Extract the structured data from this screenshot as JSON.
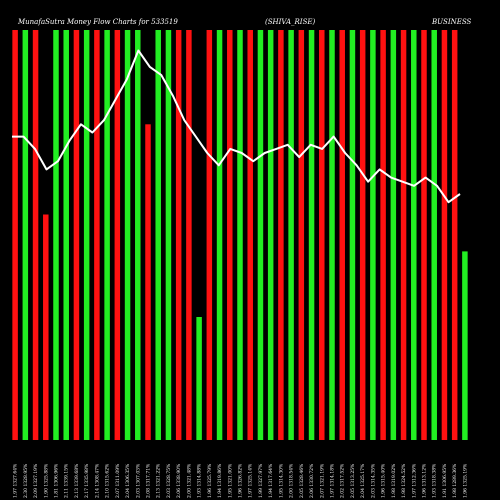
{
  "chart_data": {
    "type": "bar",
    "title": "MunafaSutra Money Flow Charts for 533519",
    "subtitle_middle": "(SHIVA_RISE)",
    "subtitle_right": "BUSINESS",
    "colors": {
      "background": "#000000",
      "up": "#22ee22",
      "down": "#ff1111",
      "line": "#ffffff"
    },
    "y_range": [
      0,
      100
    ],
    "x_labels": [
      "1.97 1327.64%",
      "2.30 1328.95%",
      "2.09 1327.19%",
      "1.90 1325.88%",
      "1.81 1306.96%",
      "2.11 1339.15%",
      "2.13 1339.68%",
      "2.17 1335.98%",
      "2.14 1308.47%",
      "2.10 1315.62%",
      "2.07 1311.09%",
      "2.04 1306.35%",
      "2.03 1307.03%",
      "2.08 1317.71%",
      "2.13 1321.22%",
      "2.03 1328.75%",
      "2.06 1338.90%",
      "2.00 1321.48%",
      "1.93 1314.88%",
      "1.96 1325.79%",
      "1.94 1319.86%",
      "1.95 1321.00%",
      "1.96 1326.82%",
      "1.97 1325.14%",
      "1.99 1327.97%",
      "1.94 1317.64%",
      "1.95 1314.30%",
      "2.00 1318.54%",
      "2.05 1328.46%",
      "2.06 1330.72%",
      "2.07 1321.19%",
      "1.97 1314.18%",
      "2.02 1317.52%",
      "2.05 1313.25%",
      "2.04 1325.17%",
      "2.03 1314.35%",
      "1.96 1315.40%",
      "1.98 1319.02%",
      "1.98 1324.52%",
      "1.97 1312.36%",
      "1.96 1313.12%",
      "1.93 1318.38%",
      "1.91 1306.95%",
      "1.98 1289.36%",
      "1.96 1325.19%"
    ],
    "bars": [
      {
        "dir": "down",
        "value": 100
      },
      {
        "dir": "up",
        "value": 100
      },
      {
        "dir": "down",
        "value": 100
      },
      {
        "dir": "down",
        "value": 55
      },
      {
        "dir": "up",
        "value": 100
      },
      {
        "dir": "up",
        "value": 100
      },
      {
        "dir": "down",
        "value": 100
      },
      {
        "dir": "up",
        "value": 100
      },
      {
        "dir": "down",
        "value": 100
      },
      {
        "dir": "up",
        "value": 100
      },
      {
        "dir": "down",
        "value": 100
      },
      {
        "dir": "up",
        "value": 100
      },
      {
        "dir": "up",
        "value": 100
      },
      {
        "dir": "down",
        "value": 77
      },
      {
        "dir": "up",
        "value": 100
      },
      {
        "dir": "up",
        "value": 100
      },
      {
        "dir": "down",
        "value": 100
      },
      {
        "dir": "down",
        "value": 100
      },
      {
        "dir": "up",
        "value": 30
      },
      {
        "dir": "down",
        "value": 100
      },
      {
        "dir": "up",
        "value": 100
      },
      {
        "dir": "down",
        "value": 100
      },
      {
        "dir": "up",
        "value": 100
      },
      {
        "dir": "down",
        "value": 100
      },
      {
        "dir": "up",
        "value": 100
      },
      {
        "dir": "up",
        "value": 100
      },
      {
        "dir": "down",
        "value": 100
      },
      {
        "dir": "up",
        "value": 100
      },
      {
        "dir": "down",
        "value": 100
      },
      {
        "dir": "up",
        "value": 100
      },
      {
        "dir": "down",
        "value": 100
      },
      {
        "dir": "up",
        "value": 100
      },
      {
        "dir": "down",
        "value": 100
      },
      {
        "dir": "up",
        "value": 100
      },
      {
        "dir": "down",
        "value": 100
      },
      {
        "dir": "up",
        "value": 100
      },
      {
        "dir": "down",
        "value": 100
      },
      {
        "dir": "up",
        "value": 100
      },
      {
        "dir": "down",
        "value": 100
      },
      {
        "dir": "up",
        "value": 100
      },
      {
        "dir": "down",
        "value": 100
      },
      {
        "dir": "up",
        "value": 100
      },
      {
        "dir": "down",
        "value": 100
      },
      {
        "dir": "down",
        "value": 100
      },
      {
        "dir": "up",
        "value": 46
      }
    ],
    "line": [
      74,
      74,
      71,
      66,
      68,
      73,
      77,
      75,
      78,
      83,
      88,
      95,
      91,
      89,
      84,
      78,
      74,
      70,
      67,
      71,
      70,
      68,
      70,
      71,
      72,
      69,
      72,
      71,
      74,
      70,
      67,
      63,
      66,
      64,
      63,
      62,
      64,
      62,
      58,
      60
    ]
  }
}
